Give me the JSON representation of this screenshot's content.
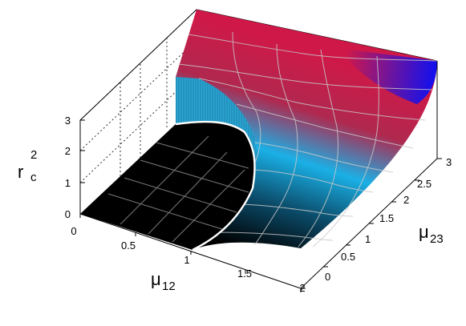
{
  "chart_data": {
    "type": "surface3d",
    "title": "",
    "axes": {
      "x": {
        "label": "μ",
        "label_sub": "12",
        "range": [
          0,
          2
        ],
        "ticks": [
          "0",
          "0.5",
          "1",
          "1.5",
          "2"
        ]
      },
      "y": {
        "label": "μ",
        "label_sub": "23",
        "range": [
          0,
          3
        ],
        "ticks": [
          "0",
          "0.5",
          "1",
          "1.5",
          "2",
          "2.5",
          "3"
        ]
      },
      "z": {
        "label": "r",
        "label_sup": "2",
        "label_sub": "c",
        "range": [
          0,
          3
        ],
        "ticks": [
          "0",
          "1",
          "2",
          "3"
        ]
      }
    },
    "region_zero": {
      "description_color": "#000000",
      "boundary": [
        [
          1.0,
          0.0
        ],
        [
          0.93,
          0.4
        ],
        [
          0.8,
          0.8
        ],
        [
          0.62,
          1.15
        ],
        [
          0.4,
          1.42
        ],
        [
          0.0,
          1.5
        ]
      ]
    },
    "wall_height_at_x0": 2.0,
    "corner_values": {
      "x2_y0": 0.3,
      "x2_y3": 2.9,
      "x0_y3": 3.0
    },
    "colors": {
      "low": "#000000",
      "mid": "#1ab0e6",
      "high_red": "#d01848",
      "high_blue": "#1010f0",
      "grid": "#c8c8c8"
    },
    "grid": true
  }
}
